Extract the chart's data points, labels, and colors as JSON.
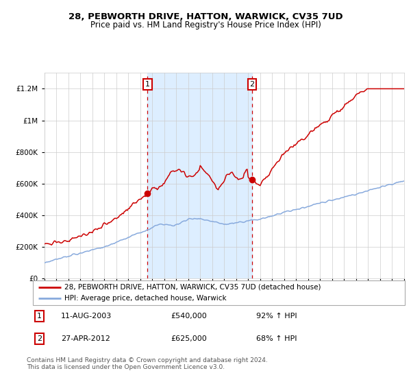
{
  "title1": "28, PEBWORTH DRIVE, HATTON, WARWICK, CV35 7UD",
  "title2": "Price paid vs. HM Land Registry's House Price Index (HPI)",
  "legend_red": "28, PEBWORTH DRIVE, HATTON, WARWICK, CV35 7UD (detached house)",
  "legend_blue": "HPI: Average price, detached house, Warwick",
  "transaction1_date": "11-AUG-2003",
  "transaction1_price": 540000,
  "transaction1_pct": "92% ↑ HPI",
  "transaction2_date": "27-APR-2012",
  "transaction2_price": 625000,
  "transaction2_pct": "68% ↑ HPI",
  "footer": "Contains HM Land Registry data © Crown copyright and database right 2024.\nThis data is licensed under the Open Government Licence v3.0.",
  "red_color": "#cc0000",
  "blue_color": "#88aadd",
  "shade_color": "#ddeeff",
  "dashed_color": "#cc0000",
  "background_color": "#ffffff",
  "grid_color": "#cccccc",
  "transaction1_x": 2003.6,
  "transaction2_x": 2012.33,
  "ylim_min": 0,
  "ylim_max": 1300000,
  "xlim_min": 1995,
  "xlim_max": 2025
}
